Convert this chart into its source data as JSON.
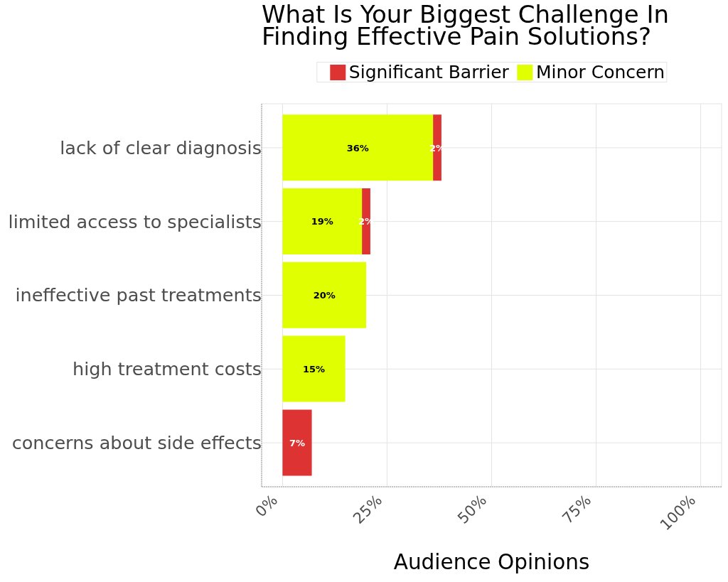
{
  "chart_data": {
    "type": "bar",
    "orientation": "horizontal",
    "stacked": true,
    "title": "What Is Your Biggest Challenge In Finding Effective Pain Solutions?",
    "xlabel": "Audience Opinions",
    "categories": [
      "lack of clear diagnosis",
      "limited access to specialists",
      "ineffective past treatments",
      "high treatment costs",
      "concerns about side effects"
    ],
    "series": [
      {
        "name": "Minor Concern",
        "color": "#e0ff00",
        "values": [
          36,
          19,
          20,
          15,
          null
        ],
        "value_labels": [
          "36%",
          "19%",
          "20%",
          "15%",
          null
        ]
      },
      {
        "name": "Significant Barrier",
        "color": "#dd3333",
        "values": [
          2,
          2,
          null,
          null,
          7
        ],
        "value_labels": [
          "2%",
          "2%",
          null,
          null,
          "7%"
        ]
      }
    ],
    "xlim": [
      -5,
      105
    ],
    "xticks": [
      {
        "value": 0,
        "label": "0%"
      },
      {
        "value": 25,
        "label": "25%"
      },
      {
        "value": 50,
        "label": "50%"
      },
      {
        "value": 75,
        "label": "75%"
      },
      {
        "value": 100,
        "label": "100%"
      }
    ],
    "grid": true,
    "legend": "top"
  }
}
